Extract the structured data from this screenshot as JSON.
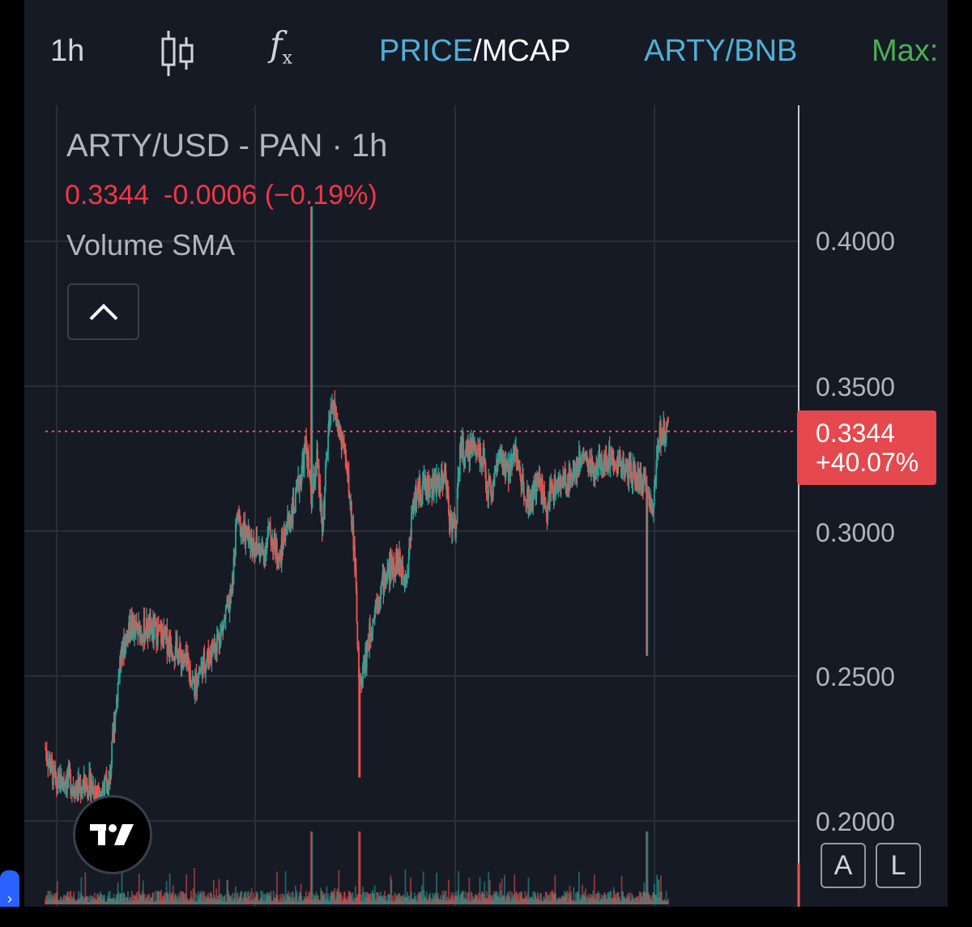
{
  "toolbar": {
    "interval": "1h",
    "candles_icon": "candlestick-icon",
    "indicators_icon": "fx-icon",
    "fx_main": "f",
    "fx_sub": "x",
    "price_label": "PRICE",
    "separator": "/",
    "mcap_label": "MCAP",
    "pair": "ARTY/BNB",
    "max_label": "Max:"
  },
  "legend": {
    "title": "ARTY/USD - PAN · 1h",
    "last_price": "0.3344",
    "change": "-0.0006 (−0.19%)",
    "indicator": "Volume SMA"
  },
  "price_tag": {
    "price": "0.3344",
    "pct": "+40.07%"
  },
  "buttons": {
    "auto": "A",
    "log": "L"
  },
  "colors": {
    "up": "#26a69a",
    "down": "#ef5350",
    "background": "#161a25",
    "grid": "#2a2e39",
    "accent": "#4fb0d8",
    "max_green": "#4caf50"
  },
  "chart_data": {
    "type": "candlestick",
    "title": "ARTY/USD - PAN · 1h",
    "ylim": [
      0.18,
      0.42
    ],
    "y_ticks": [
      "0.4000",
      "0.3500",
      "0.3000",
      "0.2500",
      "0.2000"
    ],
    "y_tick_values": [
      0.4,
      0.35,
      0.3,
      0.25,
      0.2
    ],
    "last_price": 0.3344,
    "grid": true,
    "series": [
      {
        "name": "price",
        "points": [
          [
            0,
            0.225
          ],
          [
            4,
            0.212
          ],
          [
            8,
            0.215
          ],
          [
            12,
            0.211
          ],
          [
            16,
            0.213
          ],
          [
            20,
            0.21
          ],
          [
            24,
            0.212
          ],
          [
            26,
            0.235
          ],
          [
            28,
            0.255
          ],
          [
            30,
            0.262
          ],
          [
            32,
            0.268
          ],
          [
            34,
            0.265
          ],
          [
            38,
            0.266
          ],
          [
            42,
            0.265
          ],
          [
            46,
            0.262
          ],
          [
            50,
            0.258
          ],
          [
            54,
            0.252
          ],
          [
            56,
            0.246
          ],
          [
            58,
            0.252
          ],
          [
            62,
            0.258
          ],
          [
            66,
            0.265
          ],
          [
            70,
            0.278
          ],
          [
            72,
            0.305
          ],
          [
            74,
            0.3
          ],
          [
            78,
            0.296
          ],
          [
            82,
            0.292
          ],
          [
            84,
            0.3
          ],
          [
            88,
            0.29
          ],
          [
            90,
            0.3
          ],
          [
            94,
            0.31
          ],
          [
            98,
            0.33
          ],
          [
            100,
            0.31
          ],
          [
            102,
            0.325
          ],
          [
            104,
            0.3
          ],
          [
            106,
            0.33
          ],
          [
            108,
            0.345
          ],
          [
            110,
            0.335
          ],
          [
            112,
            0.33
          ],
          [
            114,
            0.315
          ],
          [
            116,
            0.295
          ],
          [
            118,
            0.245
          ],
          [
            120,
            0.255
          ],
          [
            124,
            0.275
          ],
          [
            128,
            0.285
          ],
          [
            132,
            0.29
          ],
          [
            136,
            0.285
          ],
          [
            138,
            0.31
          ],
          [
            142,
            0.316
          ],
          [
            146,
            0.315
          ],
          [
            150,
            0.32
          ],
          [
            152,
            0.305
          ],
          [
            154,
            0.3
          ],
          [
            156,
            0.33
          ],
          [
            158,
            0.325
          ],
          [
            160,
            0.33
          ],
          [
            164,
            0.327
          ],
          [
            166,
            0.315
          ],
          [
            168,
            0.315
          ],
          [
            170,
            0.325
          ],
          [
            174,
            0.32
          ],
          [
            176,
            0.33
          ],
          [
            178,
            0.32
          ],
          [
            182,
            0.31
          ],
          [
            186,
            0.318
          ],
          [
            188,
            0.305
          ],
          [
            190,
            0.315
          ],
          [
            194,
            0.316
          ],
          [
            198,
            0.32
          ],
          [
            202,
            0.327
          ],
          [
            206,
            0.32
          ],
          [
            210,
            0.325
          ],
          [
            214,
            0.326
          ],
          [
            218,
            0.321
          ],
          [
            222,
            0.318
          ],
          [
            226,
            0.315
          ],
          [
            228,
            0.307
          ],
          [
            230,
            0.33
          ],
          [
            232,
            0.335
          ],
          [
            234,
            0.3344
          ]
        ]
      }
    ],
    "annotations": [
      {
        "label": "spike high",
        "x": 100,
        "y": 0.412
      },
      {
        "label": "wick low",
        "x": 118,
        "y": 0.215
      },
      {
        "label": "wick low 2",
        "x": 226,
        "y": 0.257
      }
    ]
  }
}
